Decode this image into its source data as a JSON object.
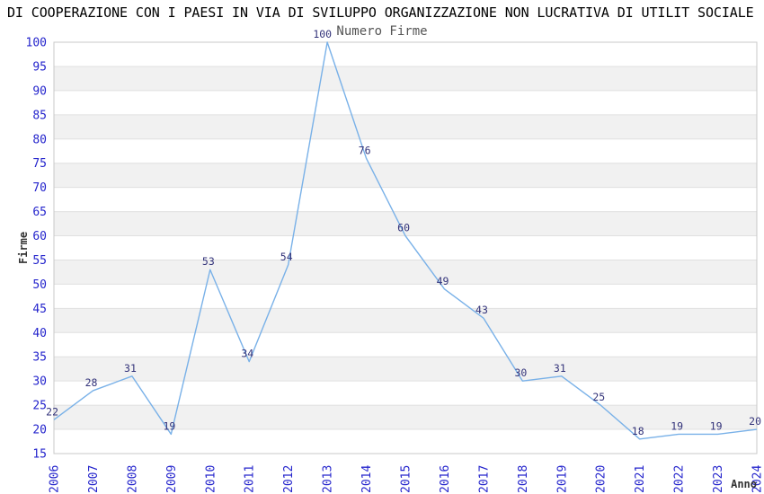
{
  "title": "DI COOPERAZIONE CON I PAESI IN VIA DI SVILUPPO ORGANIZZAZIONE NON LUCRATIVA DI UTILIT SOCIALE",
  "colors": {
    "line": "#79b1e8",
    "data_label": "#33337a",
    "axis_tick_label": "#2424cc",
    "band_fill": "#f1f1f1",
    "gridline": "#e0e0e0",
    "plot_border": "#c8c8c8",
    "title_text": "#000000",
    "legend_text": "#555555",
    "axis_name_text": "#333333"
  },
  "chart_data": {
    "type": "line",
    "title": "DI COOPERAZIONE CON I PAESI IN VIA DI SVILUPPO ORGANIZZAZIONE NON LUCRATIVA DI UTILIT SOCIALE",
    "x": [
      2006,
      2007,
      2008,
      2009,
      2010,
      2011,
      2012,
      2013,
      2014,
      2015,
      2016,
      2017,
      2018,
      2019,
      2020,
      2021,
      2022,
      2023,
      2024
    ],
    "series": [
      {
        "name": "Numero Firme",
        "values": [
          22,
          28,
          31,
          19,
          53,
          34,
          54,
          100,
          76,
          60,
          49,
          43,
          30,
          31,
          25,
          18,
          19,
          19,
          20
        ]
      }
    ],
    "xlabel": "Anno",
    "ylabel": "Firme",
    "ylim": [
      15,
      100
    ],
    "ytick_step": 5,
    "grid": true,
    "bands": "alternating-horizontal",
    "legend_position": "top-center",
    "point_labels_visible": true
  }
}
